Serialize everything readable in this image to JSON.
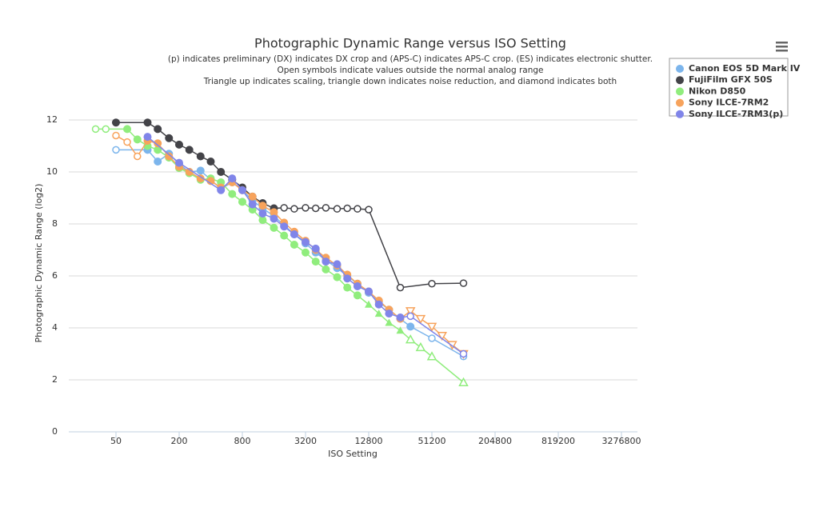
{
  "chart_data": {
    "type": "line",
    "title": "Photographic Dynamic Range versus ISO Setting",
    "subtitle": [
      "(p) indicates preliminary (DX) indicates DX crop and (APS-C) indicates APS-C crop. (ES) indicates electronic shutter.",
      "Open symbols indicate values outside the normal analog range",
      "Triangle up indicates scaling, triangle down indicates noise reduction, and diamond indicates both"
    ],
    "x_label": "ISO Setting",
    "y_label": "Photographic Dynamic Range (log2)",
    "xscale": "log",
    "xlim": [
      17.76,
      4654800
    ],
    "xticks": [
      50,
      200,
      800,
      3200,
      12800,
      51200,
      204800,
      819200,
      3276800
    ],
    "ylim": [
      0,
      13
    ],
    "yticks": [
      0,
      2,
      4,
      6,
      8,
      10,
      12
    ],
    "grid": true,
    "legend": "top-right",
    "series": [
      {
        "name": "Canon EOS 5D Mark IV",
        "color": "#7cb5ec",
        "x": [
          50,
          100,
          125,
          160,
          200,
          250,
          320,
          400,
          500,
          640,
          800,
          1000,
          1250,
          1600,
          2000,
          2500,
          3200,
          4000,
          5000,
          6400,
          8000,
          10000,
          12800,
          16000,
          20000,
          25600,
          32000,
          51200,
          102400
        ],
        "values": [
          10.85,
          10.85,
          10.4,
          10.7,
          10.3,
          10.0,
          10.05,
          9.7,
          9.35,
          9.6,
          9.3,
          8.9,
          8.6,
          8.3,
          7.95,
          7.6,
          7.25,
          6.9,
          6.6,
          6.3,
          6.0,
          5.7,
          5.35,
          5.0,
          4.7,
          4.35,
          4.05,
          3.6,
          2.9
        ],
        "symbols": [
          "circle-open",
          "circle",
          "circle",
          "circle",
          "circle",
          "circle",
          "circle",
          "circle",
          "circle",
          "circle",
          "circle",
          "circle",
          "circle",
          "circle",
          "circle",
          "circle",
          "circle",
          "circle",
          "circle",
          "circle",
          "circle",
          "circle",
          "circle",
          "circle",
          "circle",
          "circle",
          "circle",
          "circle-open",
          "circle-open"
        ]
      },
      {
        "name": "FujiFilm GFX 50S",
        "color": "#434348",
        "x": [
          50,
          100,
          125,
          160,
          200,
          250,
          320,
          400,
          500,
          640,
          800,
          1000,
          1250,
          1600,
          2000,
          2500,
          3200,
          4000,
          5000,
          6400,
          8000,
          10000,
          12800,
          25600,
          51200,
          102400
        ],
        "values": [
          11.9,
          11.9,
          11.65,
          11.3,
          11.05,
          10.85,
          10.6,
          10.4,
          10.0,
          9.7,
          9.4,
          9.05,
          8.8,
          8.6,
          8.62,
          8.58,
          8.62,
          8.6,
          8.62,
          8.58,
          8.6,
          8.58,
          8.55,
          5.55,
          5.7,
          5.72
        ],
        "symbols": [
          "circle",
          "circle",
          "circle",
          "circle",
          "circle",
          "circle",
          "circle",
          "circle",
          "circle",
          "circle",
          "circle",
          "circle",
          "circle",
          "circle",
          "circle-open",
          "circle-open",
          "circle-open",
          "circle-open",
          "circle-open",
          "circle-open",
          "circle-open",
          "circle-open",
          "circle-open",
          "circle-open",
          "circle-open",
          "circle-open"
        ]
      },
      {
        "name": "Nikon D850",
        "color": "#90ed7d",
        "x": [
          32,
          40,
          64,
          80,
          100,
          125,
          160,
          200,
          250,
          320,
          400,
          500,
          640,
          800,
          1000,
          1250,
          1600,
          2000,
          2500,
          3200,
          4000,
          5000,
          6400,
          8000,
          10000,
          12800,
          16000,
          20000,
          25600,
          32000,
          40000,
          51200,
          102400
        ],
        "values": [
          11.65,
          11.65,
          11.65,
          11.25,
          11.0,
          10.85,
          10.55,
          10.15,
          9.95,
          9.7,
          9.75,
          9.6,
          9.15,
          8.85,
          8.55,
          8.15,
          7.85,
          7.55,
          7.2,
          6.9,
          6.55,
          6.25,
          5.95,
          5.55,
          5.25,
          4.9,
          4.55,
          4.2,
          3.9,
          3.55,
          3.25,
          2.9,
          1.9
        ],
        "symbols": [
          "circle-open",
          "circle-open",
          "circle",
          "circle",
          "circle",
          "circle",
          "circle",
          "circle",
          "circle",
          "circle",
          "circle",
          "circle",
          "circle",
          "circle",
          "circle",
          "circle",
          "circle",
          "circle",
          "circle",
          "circle",
          "circle",
          "circle",
          "circle",
          "circle",
          "circle",
          "triangle-up",
          "triangle-up",
          "triangle-up",
          "triangle-up",
          "triangle-up-open",
          "triangle-up-open",
          "triangle-up-open",
          "triangle-up-open"
        ]
      },
      {
        "name": "Sony ILCE-7RM2",
        "color": "#f7a35c",
        "x": [
          50,
          64,
          80,
          100,
          125,
          160,
          200,
          250,
          320,
          400,
          500,
          640,
          800,
          1000,
          1250,
          1600,
          2000,
          2500,
          3200,
          4000,
          5000,
          6400,
          8000,
          10000,
          12800,
          16000,
          20000,
          25600,
          32000,
          40000,
          51200,
          64000,
          80000,
          102400
        ],
        "values": [
          11.4,
          11.15,
          10.6,
          11.2,
          11.1,
          10.6,
          10.2,
          10.0,
          9.75,
          9.65,
          9.4,
          9.6,
          9.3,
          9.05,
          8.7,
          8.45,
          8.05,
          7.7,
          7.35,
          7.0,
          6.7,
          6.4,
          6.05,
          5.7,
          5.4,
          5.05,
          4.7,
          4.35,
          4.65,
          4.35,
          4.05,
          3.7,
          3.35,
          3.0
        ],
        "symbols": [
          "circle-open",
          "circle-open",
          "circle-open",
          "circle",
          "circle",
          "circle",
          "circle",
          "circle",
          "circle",
          "circle",
          "circle",
          "circle",
          "circle",
          "circle",
          "circle",
          "circle",
          "circle",
          "circle",
          "circle",
          "circle",
          "circle",
          "circle",
          "circle",
          "circle",
          "circle",
          "circle",
          "circle",
          "circle",
          "triangle-down-open",
          "triangle-down-open",
          "triangle-down-open",
          "triangle-down-open",
          "triangle-down-open",
          "triangle-down-open"
        ]
      },
      {
        "name": "Sony ILCE-7RM3(p)",
        "color": "#8085e9",
        "x": [
          100,
          200,
          500,
          640,
          800,
          1000,
          1250,
          1600,
          2000,
          2500,
          3200,
          4000,
          5000,
          6400,
          8000,
          10000,
          12800,
          16000,
          20000,
          25600,
          32000,
          102400
        ],
        "values": [
          11.35,
          10.35,
          9.3,
          9.75,
          9.3,
          8.75,
          8.4,
          8.2,
          7.9,
          7.6,
          7.3,
          7.05,
          6.55,
          6.45,
          5.9,
          5.6,
          5.4,
          4.9,
          4.55,
          4.4,
          4.45,
          3.0
        ],
        "symbols": [
          "circle",
          "circle",
          "circle",
          "circle",
          "circle",
          "circle",
          "circle",
          "circle",
          "circle",
          "circle",
          "circle",
          "circle",
          "circle",
          "circle",
          "circle",
          "circle",
          "circle",
          "circle",
          "circle",
          "circle",
          "circle-open",
          "circle-open"
        ]
      }
    ]
  }
}
